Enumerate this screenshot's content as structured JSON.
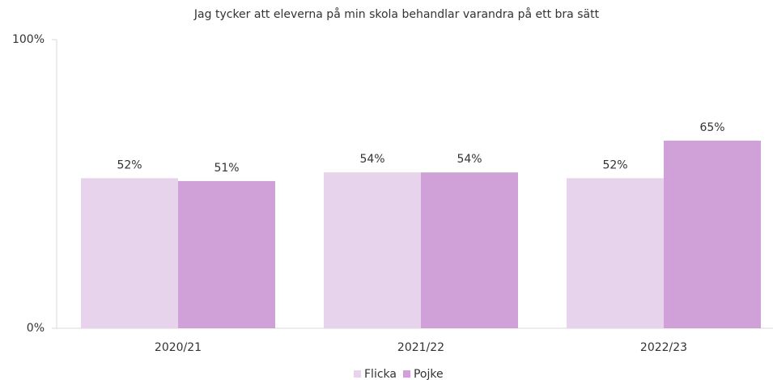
{
  "chart_data": {
    "type": "bar",
    "title": "Jag tycker att eleverna på min skola behandlar varandra på ett bra sätt",
    "categories": [
      "2020/21",
      "2021/22",
      "2022/23"
    ],
    "series": [
      {
        "name": "Flicka",
        "color": "#e8d3ec",
        "values": [
          52,
          54,
          52
        ],
        "value_labels": [
          "52%",
          "54%",
          "52%"
        ]
      },
      {
        "name": "Pojke",
        "color": "#d0a0d8",
        "values": [
          51,
          54,
          65
        ],
        "value_labels": [
          "51%",
          "54%",
          "65%"
        ]
      }
    ],
    "ylim": [
      0,
      100
    ],
    "yticks": [
      {
        "value": 0,
        "label": "0%"
      },
      {
        "value": 100,
        "label": "100%"
      }
    ],
    "grid": false,
    "legend": "bottom"
  }
}
